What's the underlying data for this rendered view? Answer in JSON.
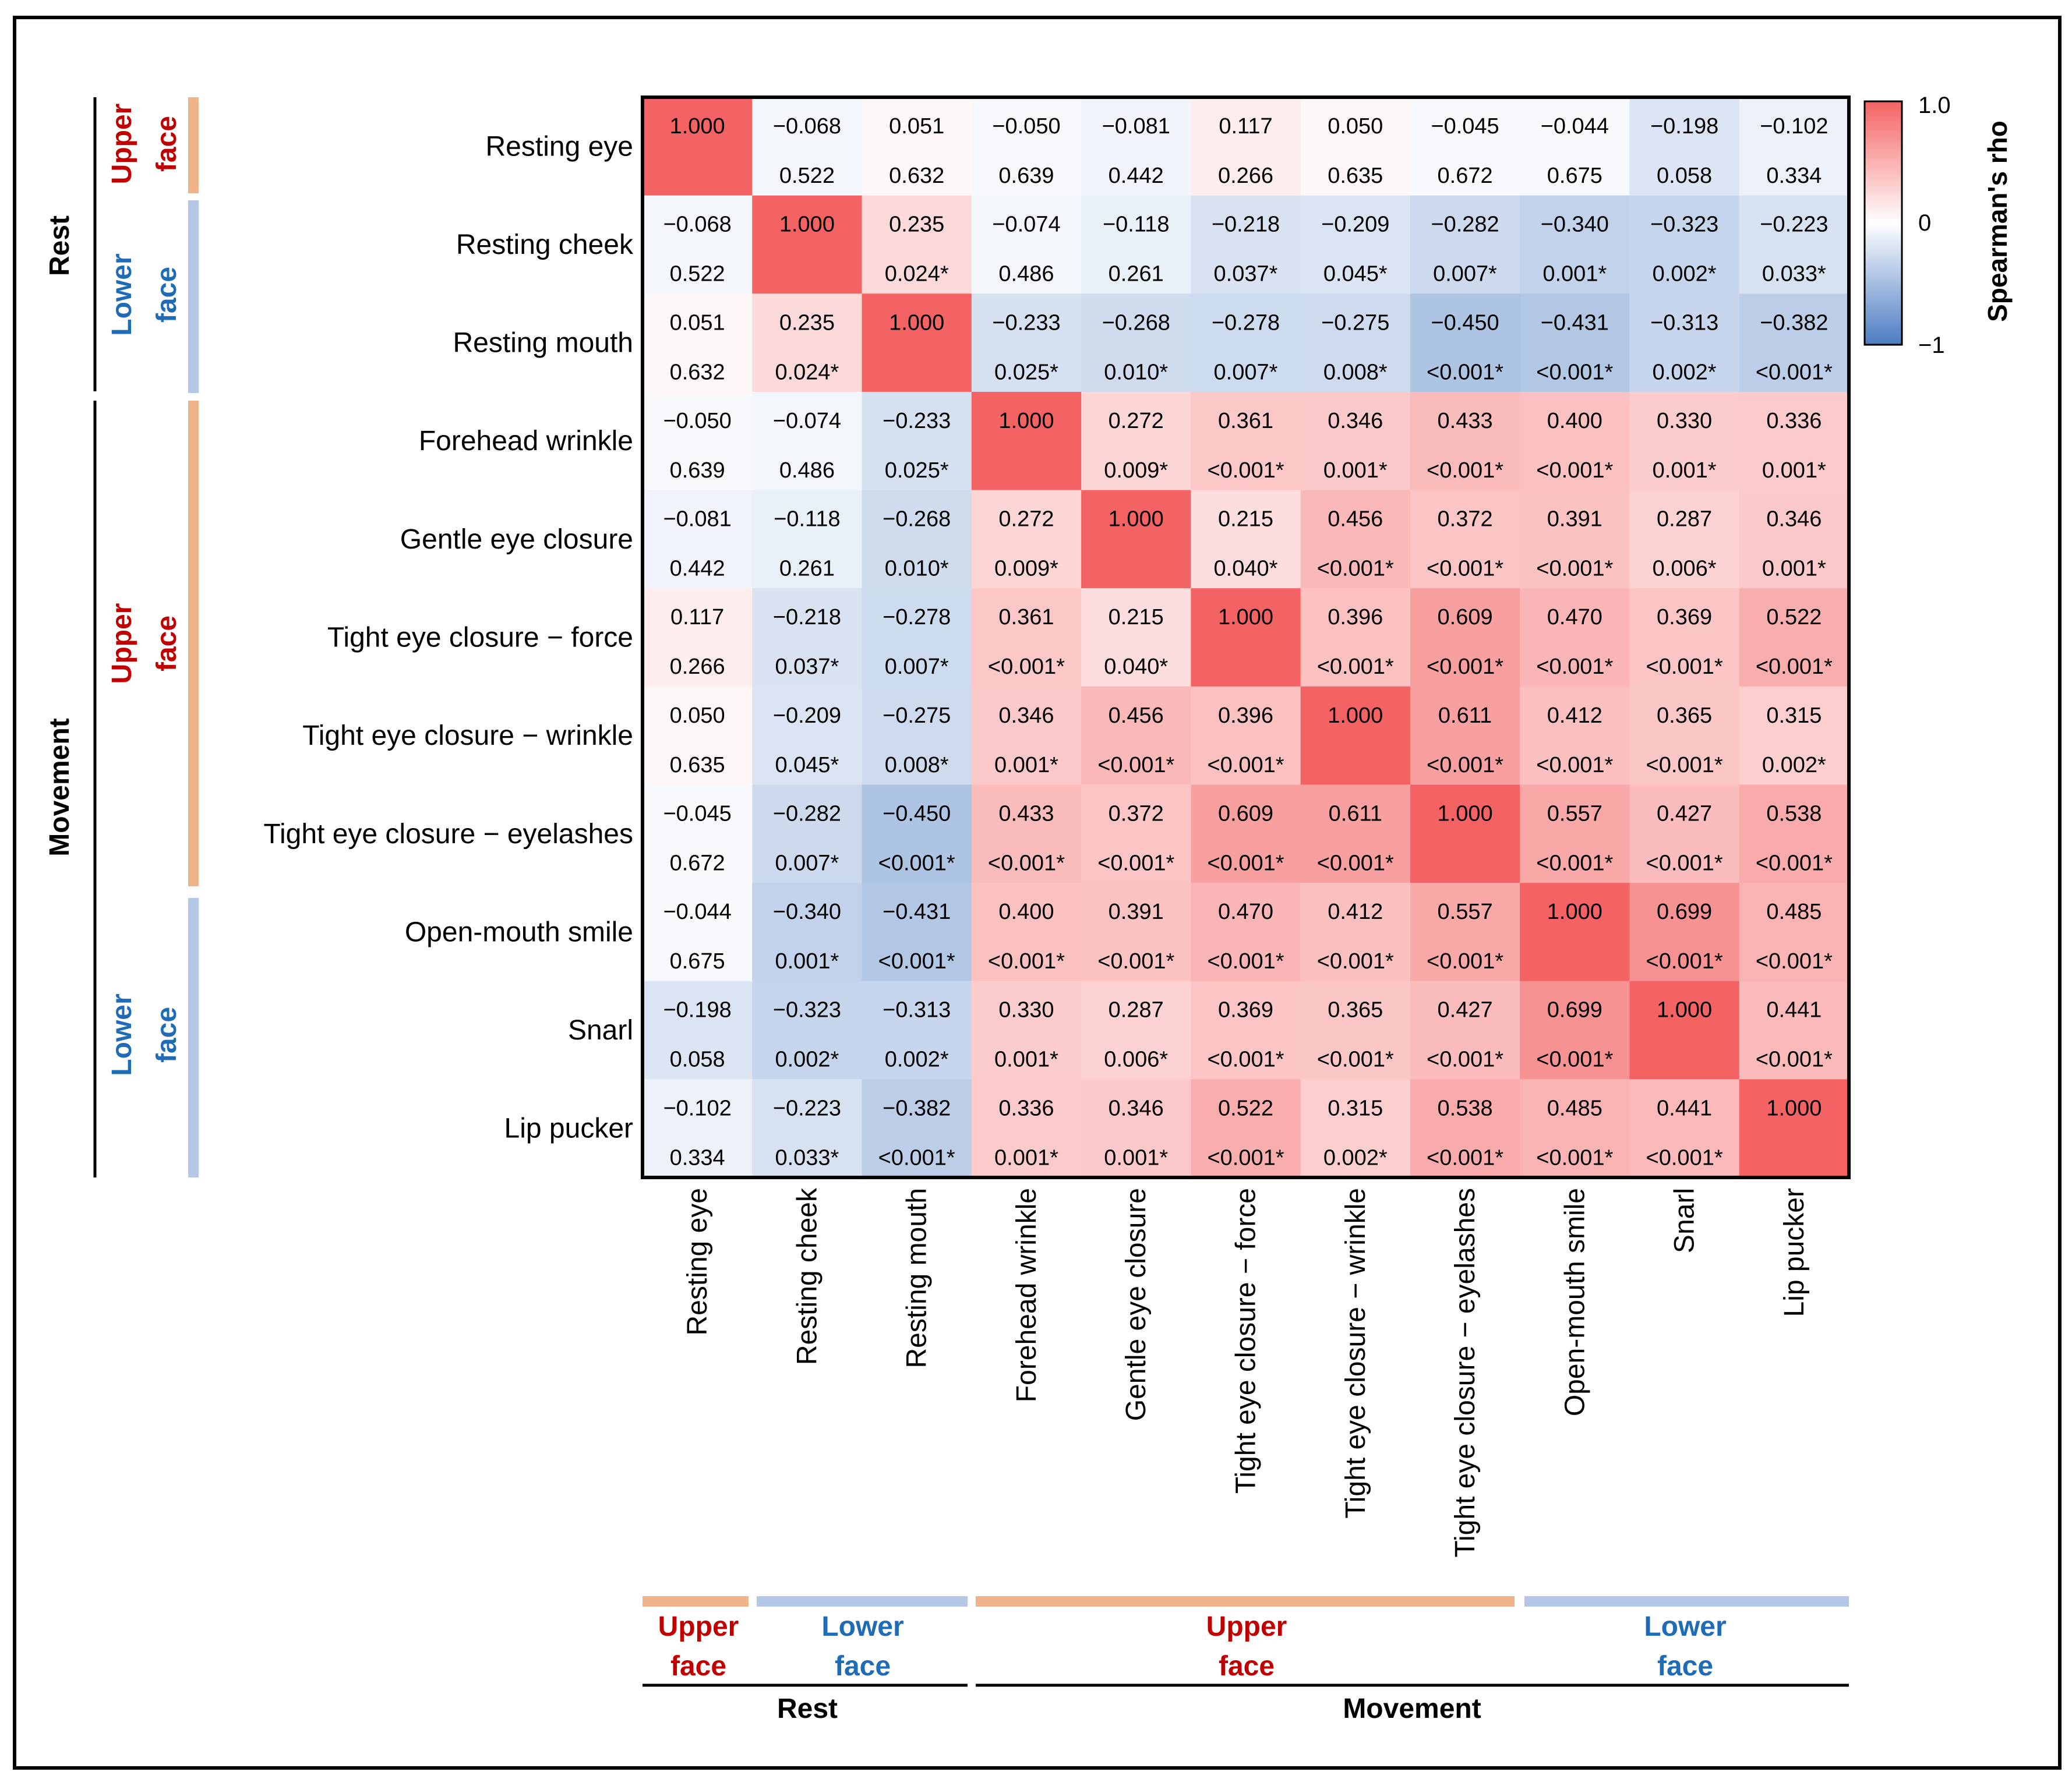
{
  "chart_data": {
    "type": "heatmap",
    "variables": [
      "Resting eye",
      "Resting cheek",
      "Resting mouth",
      "Forehead wrinkle",
      "Gentle eye closure",
      "Tight eye closure − force",
      "Tight eye closure − wrinkle",
      "Tight eye closure − eyelashes",
      "Open-mouth smile",
      "Snarl",
      "Lip pucker"
    ],
    "rho": [
      [
        "1.000",
        "−0.068",
        "0.051",
        "−0.050",
        "−0.081",
        "0.117",
        "0.050",
        "−0.045",
        "−0.044",
        "−0.198",
        "−0.102"
      ],
      [
        "−0.068",
        "1.000",
        "0.235",
        "−0.074",
        "−0.118",
        "−0.218",
        "−0.209",
        "−0.282",
        "−0.340",
        "−0.323",
        "−0.223"
      ],
      [
        "0.051",
        "0.235",
        "1.000",
        "−0.233",
        "−0.268",
        "−0.278",
        "−0.275",
        "−0.450",
        "−0.431",
        "−0.313",
        "−0.382"
      ],
      [
        "−0.050",
        "−0.074",
        "−0.233",
        "1.000",
        "0.272",
        "0.361",
        "0.346",
        "0.433",
        "0.400",
        "0.330",
        "0.336"
      ],
      [
        "−0.081",
        "−0.118",
        "−0.268",
        "0.272",
        "1.000",
        "0.215",
        "0.456",
        "0.372",
        "0.391",
        "0.287",
        "0.346"
      ],
      [
        "0.117",
        "−0.218",
        "−0.278",
        "0.361",
        "0.215",
        "1.000",
        "0.396",
        "0.609",
        "0.470",
        "0.369",
        "0.522"
      ],
      [
        "0.050",
        "−0.209",
        "−0.275",
        "0.346",
        "0.456",
        "0.396",
        "1.000",
        "0.611",
        "0.412",
        "0.365",
        "0.315"
      ],
      [
        "−0.045",
        "−0.282",
        "−0.450",
        "0.433",
        "0.372",
        "0.609",
        "0.611",
        "1.000",
        "0.557",
        "0.427",
        "0.538"
      ],
      [
        "−0.044",
        "−0.340",
        "−0.431",
        "0.400",
        "0.391",
        "0.470",
        "0.412",
        "0.557",
        "1.000",
        "0.699",
        "0.485"
      ],
      [
        "−0.198",
        "−0.323",
        "−0.313",
        "0.330",
        "0.287",
        "0.369",
        "0.365",
        "0.427",
        "0.699",
        "1.000",
        "0.441"
      ],
      [
        "−0.102",
        "−0.223",
        "−0.382",
        "0.336",
        "0.346",
        "0.522",
        "0.315",
        "0.538",
        "0.485",
        "0.441",
        "1.000"
      ]
    ],
    "p_values": [
      [
        "",
        "0.522",
        "0.632",
        "0.639",
        "0.442",
        "0.266",
        "0.635",
        "0.672",
        "0.675",
        "0.058",
        "0.334"
      ],
      [
        "0.522",
        "",
        "0.024*",
        "0.486",
        "0.261",
        "0.037*",
        "0.045*",
        "0.007*",
        "0.001*",
        "0.002*",
        "0.033*"
      ],
      [
        "0.632",
        "0.024*",
        "",
        "0.025*",
        "0.010*",
        "0.007*",
        "0.008*",
        "<0.001*",
        "<0.001*",
        "0.002*",
        "<0.001*"
      ],
      [
        "0.639",
        "0.486",
        "0.025*",
        "",
        "0.009*",
        "<0.001*",
        "0.001*",
        "<0.001*",
        "<0.001*",
        "0.001*",
        "0.001*"
      ],
      [
        "0.442",
        "0.261",
        "0.010*",
        "0.009*",
        "",
        "0.040*",
        "<0.001*",
        "<0.001*",
        "<0.001*",
        "0.006*",
        "0.001*"
      ],
      [
        "0.266",
        "0.037*",
        "0.007*",
        "<0.001*",
        "0.040*",
        "",
        "<0.001*",
        "<0.001*",
        "<0.001*",
        "<0.001*",
        "<0.001*"
      ],
      [
        "0.635",
        "0.045*",
        "0.008*",
        "0.001*",
        "<0.001*",
        "<0.001*",
        "",
        "<0.001*",
        "<0.001*",
        "<0.001*",
        "0.002*"
      ],
      [
        "0.672",
        "0.007*",
        "<0.001*",
        "<0.001*",
        "<0.001*",
        "<0.001*",
        "<0.001*",
        "",
        "<0.001*",
        "<0.001*",
        "<0.001*"
      ],
      [
        "0.675",
        "0.001*",
        "<0.001*",
        "<0.001*",
        "<0.001*",
        "<0.001*",
        "<0.001*",
        "<0.001*",
        "",
        "<0.001*",
        "<0.001*"
      ],
      [
        "0.058",
        "0.002*",
        "0.002*",
        "0.001*",
        "0.006*",
        "<0.001*",
        "<0.001*",
        "<0.001*",
        "<0.001*",
        "",
        "<0.001*"
      ],
      [
        "0.334",
        "0.033*",
        "<0.001*",
        "0.001*",
        "0.001*",
        "<0.001*",
        "0.002*",
        "<0.001*",
        "<0.001*",
        "<0.001*",
        ""
      ]
    ],
    "colorbar": {
      "title": "Spearman's rho",
      "range": [
        -1,
        1
      ],
      "tick_labels": [
        "1.0",
        "0",
        "−1"
      ],
      "color_min": "#4c7cc1",
      "color_mid": "#ffffff",
      "color_max": "#f46363"
    },
    "groups": {
      "upper_label_line1": "Upper",
      "upper_label_line2": "face",
      "lower_label_line1": "Lower",
      "lower_label_line2": "face",
      "rest_label": "Rest",
      "movement_label": "Movement",
      "upper_text_color": "#c00000",
      "lower_text_color": "#1f6bb5",
      "upper_bar_color": "#f0b48d",
      "lower_bar_color": "#b4c7e7"
    }
  }
}
